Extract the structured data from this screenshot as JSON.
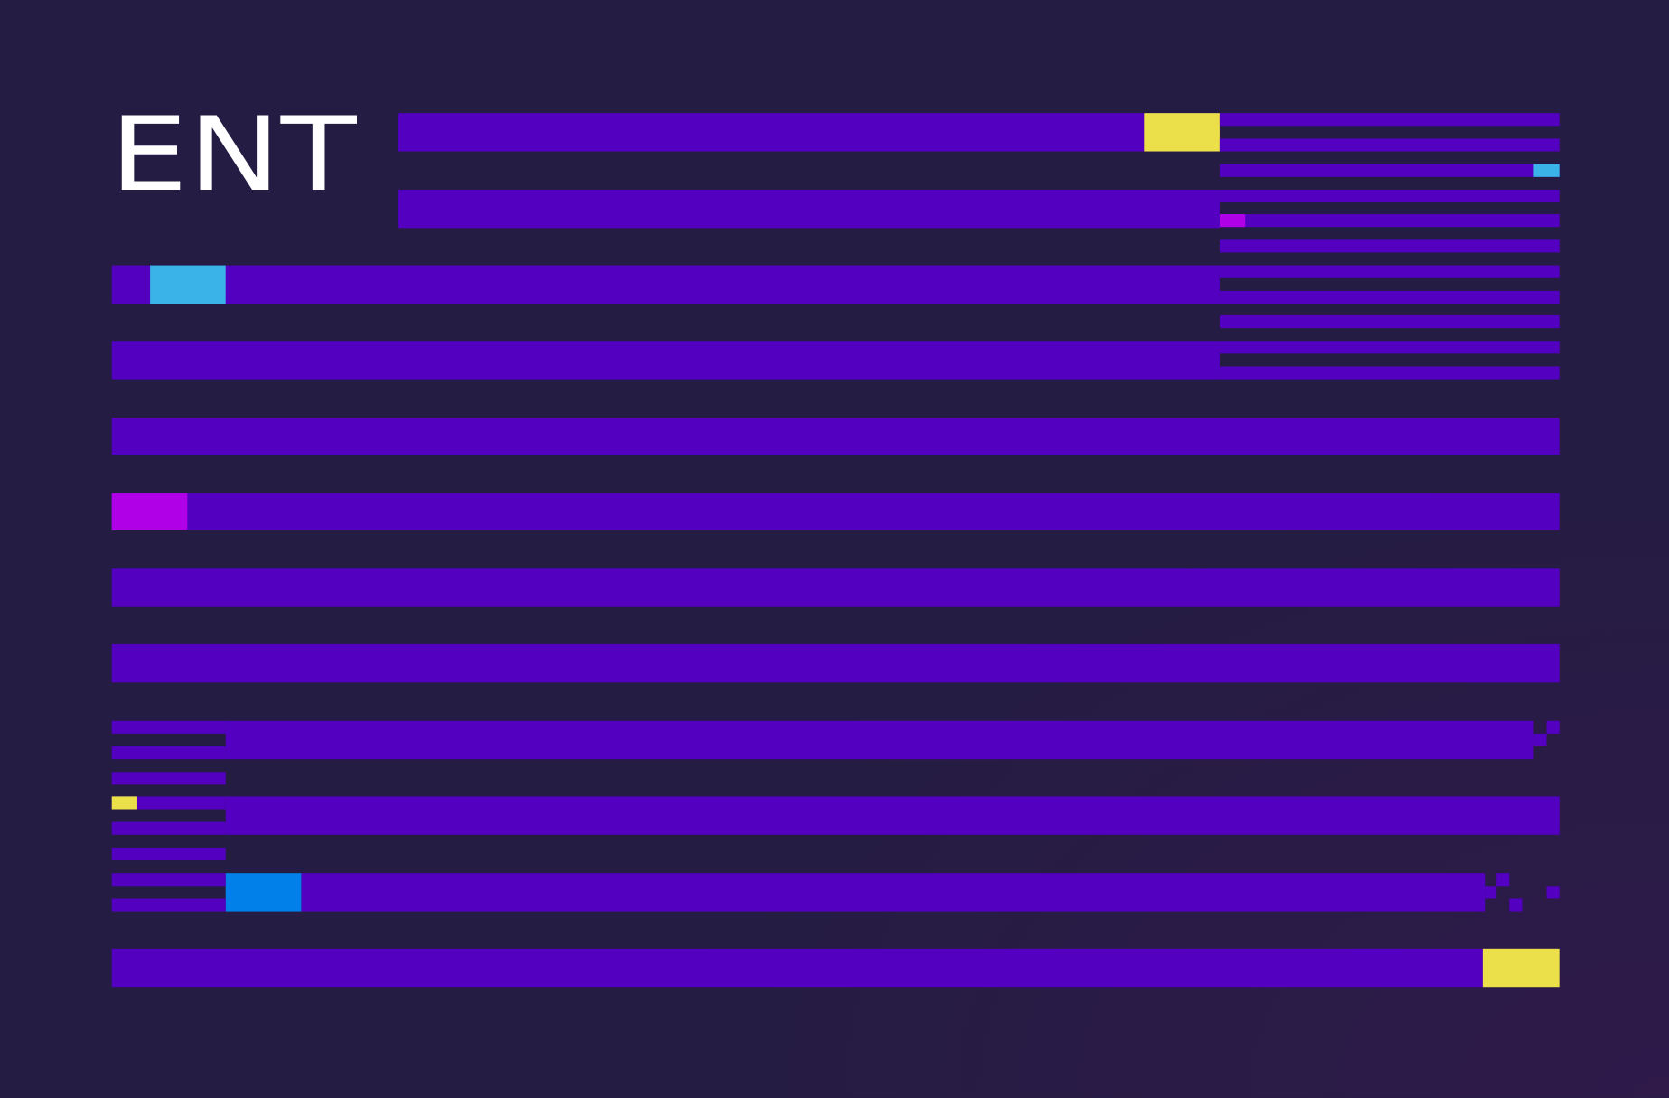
{
  "logo": {
    "text": "ENT"
  }
}
